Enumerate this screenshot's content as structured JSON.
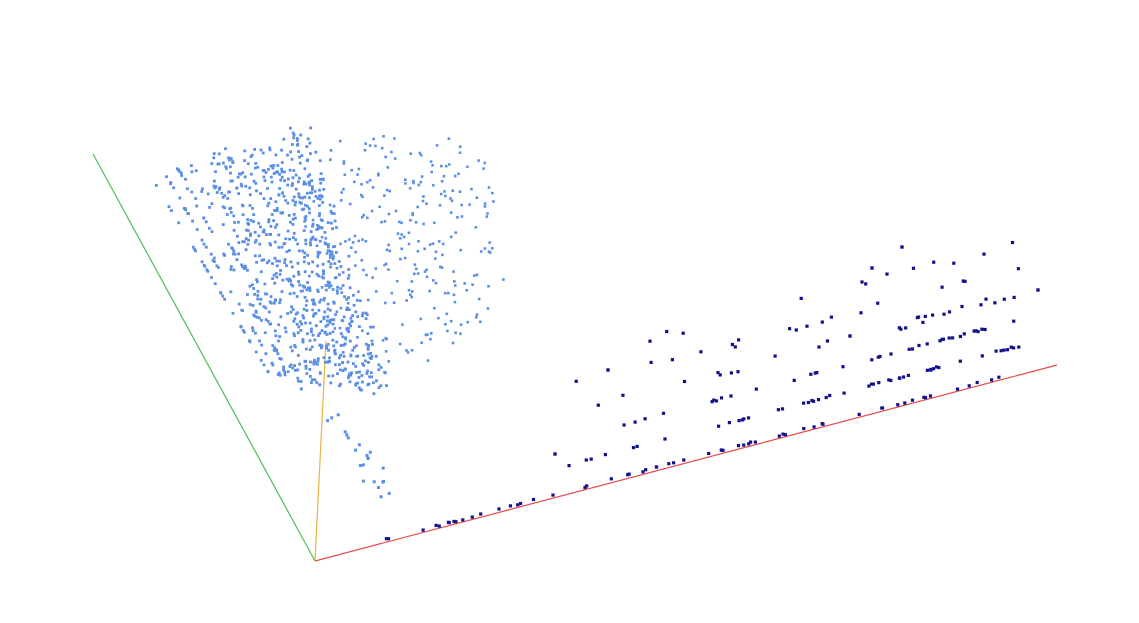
{
  "chart_data": {
    "type": "scatter",
    "projection": "3d",
    "title": "",
    "xlabel": "",
    "ylabel": "",
    "zlabel": "",
    "grid": false,
    "legend": "none",
    "axes": {
      "x": {
        "color": "#e8494a"
      },
      "y": {
        "color": "#4fbf4f"
      },
      "z": {
        "color": "#e8b43a"
      }
    },
    "series": [
      {
        "color": "#5b8fe6",
        "marker": "square",
        "values": {
          "row_counts": [
            30,
            36,
            44,
            52,
            60,
            66,
            74,
            80,
            88,
            94,
            100,
            106
          ],
          "spread": 0.85
        }
      },
      {
        "color": "#12128c",
        "marker": "square",
        "values": {
          "row_counts": [
            60,
            48,
            36,
            26,
            18,
            12
          ],
          "spread": 0.6
        }
      }
    ]
  }
}
